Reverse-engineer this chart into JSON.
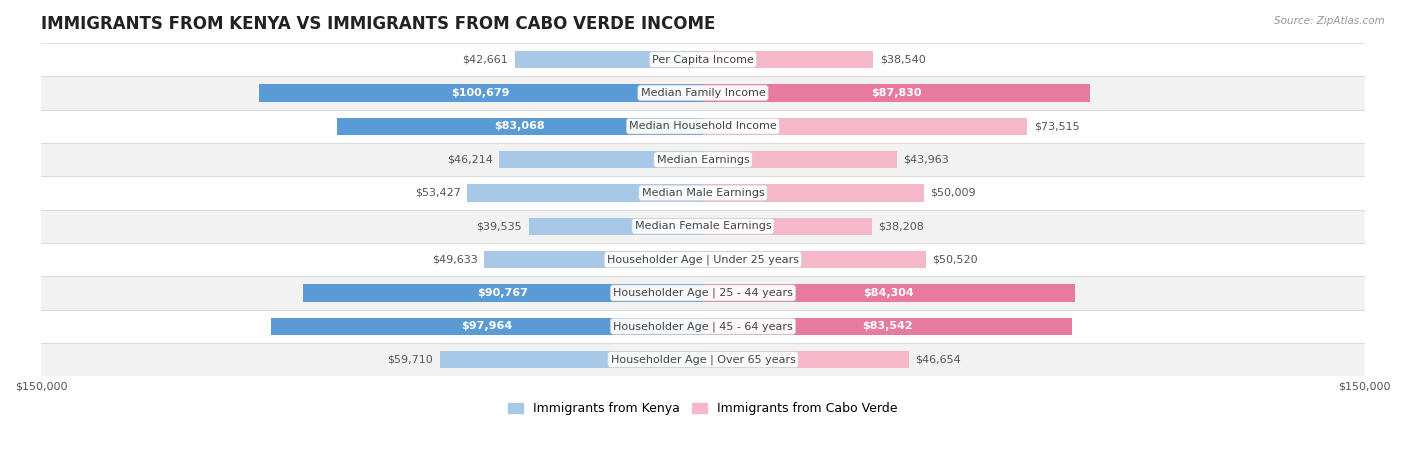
{
  "title": "IMMIGRANTS FROM KENYA VS IMMIGRANTS FROM CABO VERDE INCOME",
  "source": "Source: ZipAtlas.com",
  "categories": [
    "Per Capita Income",
    "Median Family Income",
    "Median Household Income",
    "Median Earnings",
    "Median Male Earnings",
    "Median Female Earnings",
    "Householder Age | Under 25 years",
    "Householder Age | 25 - 44 years",
    "Householder Age | 45 - 64 years",
    "Householder Age | Over 65 years"
  ],
  "kenya_values": [
    42661,
    100679,
    83068,
    46214,
    53427,
    39535,
    49633,
    90767,
    97964,
    59710
  ],
  "caboverde_values": [
    38540,
    87830,
    73515,
    43963,
    50009,
    38208,
    50520,
    84304,
    83542,
    46654
  ],
  "kenya_labels": [
    "$42,661",
    "$100,679",
    "$83,068",
    "$46,214",
    "$53,427",
    "$39,535",
    "$49,633",
    "$90,767",
    "$97,964",
    "$59,710"
  ],
  "caboverde_labels": [
    "$38,540",
    "$87,830",
    "$73,515",
    "$43,963",
    "$50,009",
    "$38,208",
    "$50,520",
    "$84,304",
    "$83,542",
    "$46,654"
  ],
  "kenya_color": "#a8c8e8",
  "kenya_color_dark": "#5b9bd5",
  "caboverde_color": "#f4b8c8",
  "caboverde_color_dark": "#e87aa0",
  "max_value": 150000,
  "background_color": "#ffffff",
  "row_bg_gray": "#f2f2f2",
  "row_bg_white": "#ffffff",
  "title_fontsize": 12,
  "label_fontsize": 8,
  "category_fontsize": 8,
  "legend_fontsize": 9,
  "axis_label_fontsize": 8,
  "inside_label_threshold": 75000
}
